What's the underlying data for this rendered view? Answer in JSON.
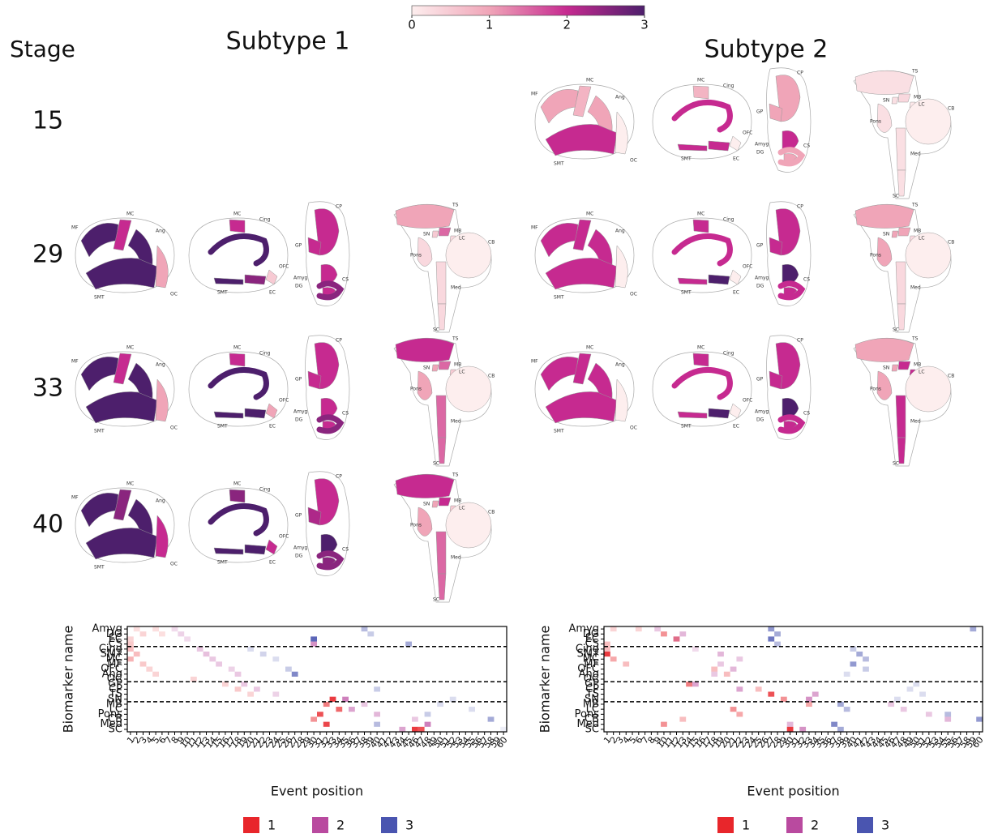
{
  "colorbar": {
    "lim": [
      0,
      3
    ],
    "ticks": [
      0,
      1,
      2,
      3
    ],
    "colors": [
      "#fdeeee",
      "#f0a5b8",
      "#c62a90",
      "#4d1f6c"
    ]
  },
  "stage_label": "Stage",
  "stages": [
    15,
    29,
    33,
    40
  ],
  "regions": [
    "Amyg",
    "DG",
    "EC",
    "CS",
    "Cing",
    "SMT",
    "MC",
    "MF",
    "OFC",
    "Ang",
    "OC",
    "GP",
    "CP",
    "TS",
    "SN",
    "MB",
    "LC",
    "Pons",
    "CB",
    "Med",
    "SC"
  ],
  "subtypes": [
    {
      "title": "Subtype 1",
      "panels": [
        null,
        [
          2,
          2,
          2.5,
          2.5,
          3,
          3,
          2,
          3,
          0.5,
          3,
          1,
          2,
          2,
          1,
          0.5,
          1.5,
          0.3,
          0.3,
          0,
          0.3,
          0.3
        ],
        [
          2,
          2,
          3,
          2.5,
          3,
          3,
          2,
          3,
          1,
          3,
          1,
          2,
          2,
          2,
          1,
          1.5,
          0.5,
          1,
          0,
          1.5,
          1.5
        ],
        [
          3,
          2.5,
          3,
          2.5,
          3,
          3,
          2.5,
          3,
          2,
          3,
          2,
          2.2,
          2,
          2,
          1,
          2,
          0.5,
          1,
          0,
          1.5,
          1.5
        ]
      ]
    },
    {
      "title": "Subtype 2",
      "panels": [
        [
          2,
          1,
          2,
          1,
          2,
          2,
          0.8,
          1,
          0,
          1,
          0,
          1,
          1,
          0.2,
          0.2,
          0.3,
          0.1,
          0.2,
          0,
          0.2,
          0.2
        ],
        [
          3,
          2,
          3,
          2,
          2,
          2,
          2,
          2,
          0,
          2,
          0,
          2,
          2,
          1,
          1,
          1,
          0.3,
          1,
          0,
          0.3,
          0.3
        ],
        [
          3,
          2,
          3,
          2,
          2,
          2,
          2,
          2,
          0,
          2,
          0,
          2,
          2,
          1,
          1,
          2,
          2,
          1,
          0,
          2,
          2
        ],
        null
      ]
    }
  ],
  "chart_data": [
    {
      "type": "heatmap",
      "xlabel": "Event position",
      "ylabel": "Biomarker name",
      "categories": [
        "Amyg",
        "DG",
        "EC",
        "CS",
        "Cing",
        "SMT",
        "MC",
        "MF",
        "OFC",
        "Ang",
        "OC",
        "GP",
        "CP",
        "TS",
        "SN",
        "MB",
        "LC",
        "Pons",
        "CB",
        "Med",
        "SC"
      ],
      "xlim": [
        0.5,
        60.5
      ],
      "xticks": [
        1,
        2,
        3,
        4,
        5,
        6,
        7,
        8,
        9,
        10,
        11,
        12,
        13,
        14,
        15,
        16,
        17,
        18,
        19,
        20,
        21,
        22,
        23,
        24,
        25,
        26,
        27,
        28,
        29,
        30,
        31,
        32,
        33,
        34,
        35,
        36,
        37,
        38,
        39,
        40,
        41,
        42,
        43,
        44,
        45,
        46,
        47,
        48,
        49,
        50,
        51,
        52,
        53,
        54,
        55,
        56,
        57,
        58,
        59,
        60
      ],
      "separators": [
        4,
        11,
        15
      ],
      "series": [
        {
          "name": "1",
          "color": "#e8262b",
          "y": [
            "Amyg",
            "Amyg",
            "DG",
            "DG",
            "EC",
            "CS",
            "Cing",
            "SMT",
            "MC",
            "MF",
            "OFC",
            "Ang",
            "GP",
            "CP",
            "TS",
            "SN",
            "MB",
            "LC",
            "Pons",
            "CB",
            "Med",
            "SC",
            "SC",
            "OC"
          ],
          "x": [
            2,
            5,
            3,
            6,
            1,
            1,
            1,
            2,
            1,
            3,
            4,
            5,
            16,
            18,
            20,
            33,
            32,
            34,
            31,
            30,
            32,
            46,
            47,
            11
          ],
          "values": [
            0.15,
            0.15,
            0.2,
            0.15,
            0.2,
            0.25,
            0.3,
            0.3,
            0.35,
            0.25,
            0.2,
            0.2,
            0.2,
            0.25,
            0.2,
            0.9,
            0.6,
            0.7,
            0.8,
            0.5,
            0.85,
            0.9,
            0.8,
            0.2
          ]
        },
        {
          "name": "2",
          "color": "#b94a9f",
          "y": [
            "Amyg",
            "DG",
            "EC",
            "Cing",
            "SMT",
            "MC",
            "MF",
            "OFC",
            "Ang",
            "GP",
            "CP",
            "TS",
            "CS",
            "SN",
            "LC",
            "Pons",
            "CB",
            "Med",
            "SC",
            "MB"
          ],
          "x": [
            8,
            9,
            10,
            12,
            13,
            14,
            15,
            17,
            18,
            19,
            21,
            24,
            30,
            35,
            36,
            40,
            46,
            48,
            44,
            38
          ],
          "values": [
            0.2,
            0.25,
            0.2,
            0.3,
            0.35,
            0.3,
            0.3,
            0.25,
            0.3,
            0.3,
            0.3,
            0.25,
            0.6,
            0.7,
            0.5,
            0.4,
            0.3,
            0.7,
            0.5,
            0.3
          ]
        },
        {
          "name": "3",
          "color": "#4a55b0",
          "y": [
            "Amyg",
            "DG",
            "EC",
            "Cing",
            "SMT",
            "MC",
            "Ang",
            "OFC",
            "CS",
            "CP",
            "Pons",
            "CB",
            "Med",
            "MB",
            "LC",
            "SN",
            "SC"
          ],
          "x": [
            38,
            39,
            30,
            20,
            22,
            24,
            27,
            26,
            45,
            40,
            48,
            58,
            40,
            50,
            55,
            52,
            60
          ],
          "values": [
            0.4,
            0.3,
            0.9,
            0.2,
            0.25,
            0.2,
            0.7,
            0.3,
            0.5,
            0.3,
            0.3,
            0.5,
            0.4,
            0.2,
            0.2,
            0.2,
            0.1
          ]
        }
      ]
    },
    {
      "type": "heatmap",
      "xlabel": "Event position",
      "ylabel": "Biomarker name",
      "categories": [
        "Amyg",
        "DG",
        "EC",
        "CS",
        "Cing",
        "SMT",
        "MC",
        "MF",
        "OFC",
        "Ang",
        "OC",
        "GP",
        "CP",
        "TS",
        "SN",
        "MB",
        "LC",
        "Pons",
        "CB",
        "Med",
        "SC"
      ],
      "xlim": [
        0.5,
        60.5
      ],
      "xticks": [
        1,
        2,
        3,
        4,
        5,
        6,
        7,
        8,
        9,
        10,
        11,
        12,
        13,
        14,
        15,
        16,
        17,
        18,
        19,
        20,
        21,
        22,
        23,
        24,
        25,
        26,
        27,
        28,
        29,
        30,
        31,
        32,
        33,
        34,
        35,
        36,
        37,
        38,
        39,
        40,
        41,
        42,
        43,
        44,
        45,
        46,
        47,
        48,
        49,
        50,
        51,
        52,
        53,
        54,
        55,
        56,
        57,
        58,
        59,
        60
      ],
      "separators": [
        4,
        11,
        15
      ],
      "series": [
        {
          "name": "1",
          "color": "#e8262b",
          "y": [
            "Amyg",
            "Amyg",
            "DG",
            "EC",
            "CS",
            "Cing",
            "SMT",
            "MC",
            "MF",
            "OFC",
            "Ang",
            "GP",
            "CP",
            "TS",
            "SN",
            "MB",
            "LC",
            "Pons",
            "CB",
            "Med",
            "SC"
          ],
          "x": [
            2,
            6,
            10,
            12,
            1,
            1,
            1,
            2,
            4,
            18,
            20,
            14,
            25,
            27,
            29,
            33,
            21,
            22,
            13,
            10,
            30
          ],
          "values": [
            0.2,
            0.2,
            0.5,
            0.6,
            0.3,
            0.3,
            0.9,
            0.4,
            0.3,
            0.3,
            0.3,
            0.6,
            0.3,
            0.8,
            0.5,
            0.4,
            0.5,
            0.4,
            0.3,
            0.5,
            0.9
          ]
        },
        {
          "name": "2",
          "color": "#b94a9f",
          "y": [
            "Amyg",
            "DG",
            "EC",
            "Cing",
            "SMT",
            "MC",
            "MF",
            "OFC",
            "Ang",
            "GP",
            "CP",
            "TS",
            "SN",
            "MB",
            "LC",
            "Pons",
            "CB",
            "Med",
            "SC"
          ],
          "x": [
            9,
            13,
            12,
            15,
            19,
            22,
            19,
            21,
            18,
            15,
            22,
            34,
            33,
            46,
            48,
            52,
            55,
            30,
            32
          ],
          "values": [
            0.3,
            0.4,
            0.3,
            0.2,
            0.4,
            0.3,
            0.3,
            0.4,
            0.3,
            0.5,
            0.5,
            0.5,
            0.6,
            0.3,
            0.3,
            0.3,
            0.4,
            0.4,
            0.6
          ]
        },
        {
          "name": "3",
          "color": "#4a55b0",
          "y": [
            "Amyg",
            "DG",
            "EC",
            "CS",
            "Cing",
            "SMT",
            "MC",
            "MF",
            "OFC",
            "Ang",
            "GP",
            "CP",
            "TS",
            "SN",
            "Pons",
            "CB",
            "Med",
            "MB",
            "LC",
            "SC",
            "Amyg"
          ],
          "x": [
            27,
            28,
            27,
            28,
            40,
            41,
            42,
            40,
            42,
            39,
            50,
            49,
            51,
            47,
            55,
            60,
            37,
            38,
            39,
            38,
            59
          ],
          "values": [
            0.6,
            0.5,
            0.8,
            0.4,
            0.3,
            0.5,
            0.4,
            0.6,
            0.3,
            0.2,
            0.2,
            0.2,
            0.2,
            0.2,
            0.4,
            0.6,
            0.7,
            0.5,
            0.4,
            0.5,
            0.5
          ]
        }
      ]
    }
  ]
}
